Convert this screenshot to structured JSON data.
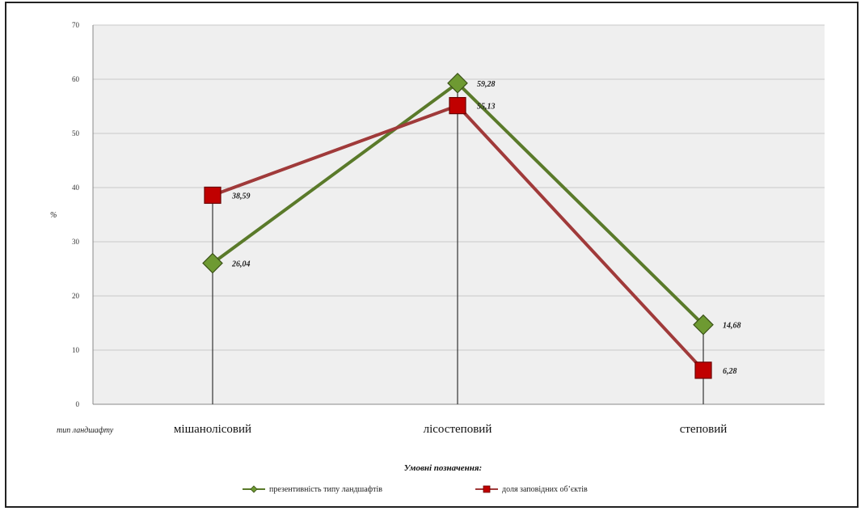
{
  "chart_data": {
    "type": "line",
    "categories": [
      "мішанолісовий",
      "лісостеповий",
      "степовий"
    ],
    "series": [
      {
        "name": "презентивність типу ландшафтів",
        "values": [
          26.04,
          59.28,
          14.68
        ],
        "labels": [
          "26,04",
          "59,28",
          "14,68"
        ],
        "color": "#5a7a2a",
        "marker_color": "#6e9a32",
        "marker": "diamond"
      },
      {
        "name": "доля заповідних об’єктів",
        "values": [
          38.59,
          55.13,
          6.28
        ],
        "labels": [
          "38,59",
          "55,13",
          "6,28"
        ],
        "color": "#a03a3a",
        "marker_color": "#c00000",
        "marker": "square"
      }
    ],
    "yticks": [
      0,
      10,
      20,
      30,
      40,
      50,
      60,
      70
    ],
    "ylim": [
      0,
      70
    ],
    "ylabel": "%",
    "xlabel": "тип ландшафту",
    "grid": true,
    "legend_title": "Умовні позначення:",
    "legend_position": "bottom"
  },
  "colors": {
    "plot_background": "#efefef",
    "gridline": "#c8c8c8",
    "drop_line": "#333333"
  }
}
